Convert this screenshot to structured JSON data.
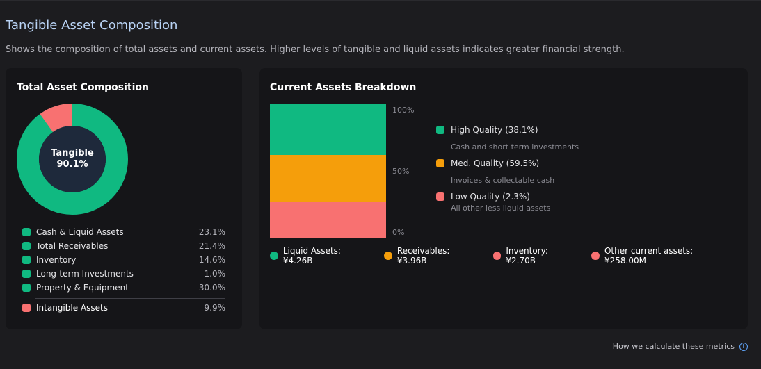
{
  "header": {
    "title": "Tangible Asset Composition",
    "subtitle": "Shows the composition of total assets and current assets. Higher levels of tangible and liquid assets indicates greater financial strength."
  },
  "total_assets": {
    "title": "Total Asset Composition",
    "center_label": "Tangible",
    "center_value": "90.1%",
    "items": [
      {
        "label": "Cash & Liquid Assets",
        "pct": "23.1%",
        "color": "#10b981"
      },
      {
        "label": "Total Receivables",
        "pct": "21.4%",
        "color": "#10b981"
      },
      {
        "label": "Inventory",
        "pct": "14.6%",
        "color": "#10b981"
      },
      {
        "label": "Long-term Investments",
        "pct": "1.0%",
        "color": "#10b981"
      },
      {
        "label": "Property & Equipment",
        "pct": "30.0%",
        "color": "#10b981"
      }
    ],
    "intangible": {
      "label": "Intangible Assets",
      "pct": "9.9%",
      "color": "#f87171"
    }
  },
  "current_assets": {
    "title": "Current Assets Breakdown",
    "axis": [
      "100%",
      "50%",
      "0%"
    ],
    "qualities": [
      {
        "label": "High Quality (38.1%)",
        "desc": "Cash and short term investments",
        "color": "#10b981"
      },
      {
        "label": "Med. Quality (59.5%)",
        "desc": "Invoices & collectable cash",
        "color": "#f59e0b"
      },
      {
        "label": "Low Quality (2.3%)",
        "desc": "All other less liquid assets",
        "color": "#f87171"
      }
    ],
    "legend": [
      {
        "label": "Liquid Assets: ¥4.26B",
        "color": "#10b981"
      },
      {
        "label": "Receivables: ¥3.96B",
        "color": "#f59e0b"
      },
      {
        "label": "Inventory: ¥2.70B",
        "color": "#f87171"
      },
      {
        "label": "Other current assets: ¥258.00M",
        "color": "#f87171"
      }
    ]
  },
  "footer": {
    "link": "How we calculate these metrics",
    "icon": "info-icon"
  },
  "chart_data": [
    {
      "type": "pie",
      "title": "Total Asset Composition",
      "categories": [
        "Tangible",
        "Intangible Assets"
      ],
      "values": [
        90.1,
        9.9
      ],
      "colors": [
        "#10b981",
        "#f87171"
      ]
    },
    {
      "type": "bar",
      "title": "Current Assets Breakdown",
      "categories": [
        "Current Assets"
      ],
      "series": [
        {
          "name": "Liquid Assets",
          "values": [
            4.26
          ],
          "color": "#10b981"
        },
        {
          "name": "Receivables",
          "values": [
            3.96
          ],
          "color": "#f59e0b"
        },
        {
          "name": "Inventory",
          "values": [
            2.7
          ],
          "color": "#f87171"
        },
        {
          "name": "Other current assets",
          "values": [
            0.258
          ],
          "color": "#f87171"
        }
      ],
      "ylim": [
        0,
        100
      ]
    }
  ]
}
